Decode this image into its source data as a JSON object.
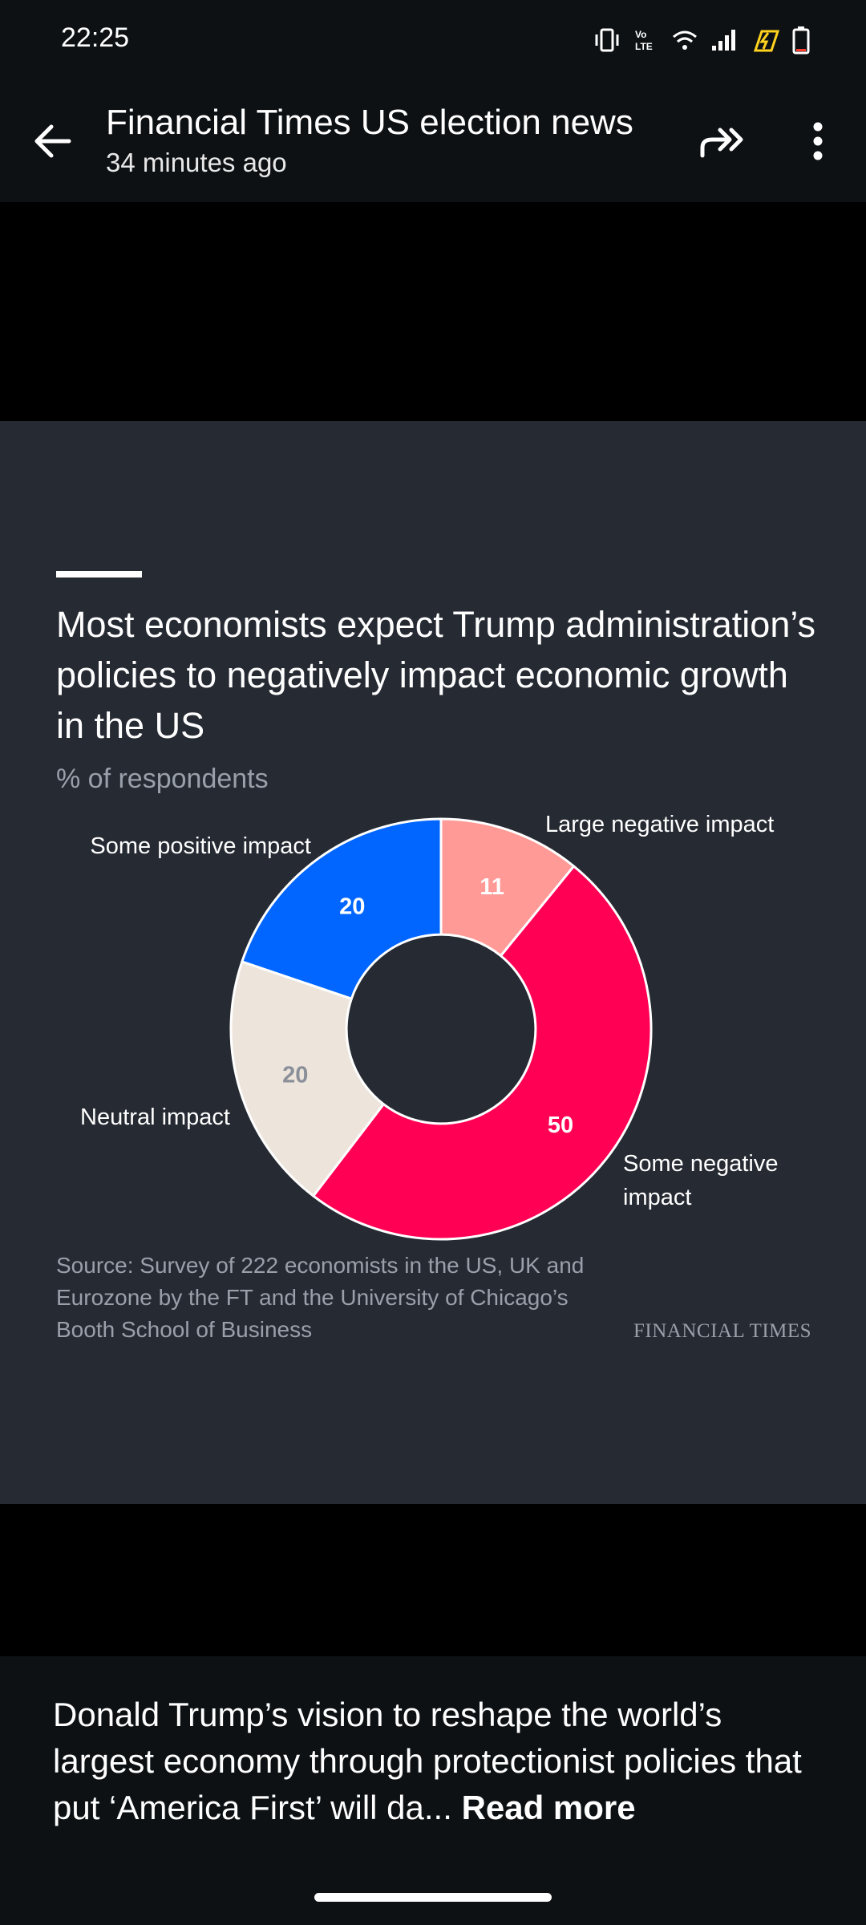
{
  "status_bar": {
    "time": "22:25",
    "icons": [
      "vibrate-icon",
      "volte-icon",
      "wifi-icon",
      "signal-icon",
      "charging-icon",
      "battery-icon"
    ]
  },
  "app_bar": {
    "title": "Financial Times US election news",
    "subtitle": "34 minutes ago",
    "back_icon": "arrow-left-icon",
    "share_icon": "share-forward-icon",
    "more_icon": "more-vert-icon"
  },
  "chart": {
    "source": "Source: Survey of 222 economists in the US, UK and Eurozone by the FT and the University of Chicago’s Booth School of Business",
    "brand": "FINANCIAL TIMES"
  },
  "chart_data": {
    "type": "pie",
    "title": "Most economists expect Trump administration’s policies to negatively impact economic growth in the US",
    "subtitle": "% of respondents",
    "categories": [
      "Large negative impact",
      "Some negative impact",
      "Neutral impact",
      "Some positive impact"
    ],
    "category_lines": [
      [
        "Large negative impact"
      ],
      [
        "Some negative",
        "impact"
      ],
      [
        "Neutral impact"
      ],
      [
        "Some positive impact"
      ]
    ],
    "values": [
      11,
      50,
      20,
      20
    ],
    "colors": [
      "#ff9a96",
      "#ff0055",
      "#ede5dc",
      "#0066ff"
    ],
    "label_colors": [
      "#ffffff",
      "#ffffff",
      "#8a8f99",
      "#ffffff"
    ],
    "inner_radius_ratio": 0.45
  },
  "summary": {
    "text": "Donald Trump’s vision to reshape the world’s largest economy through protectionist policies that put ‘America First’ will da...",
    "read_more": "Read more"
  },
  "colors": {
    "bar_bg": "#0d1114",
    "card_bg": "#262a33",
    "muted_text": "#9aa0aa"
  }
}
